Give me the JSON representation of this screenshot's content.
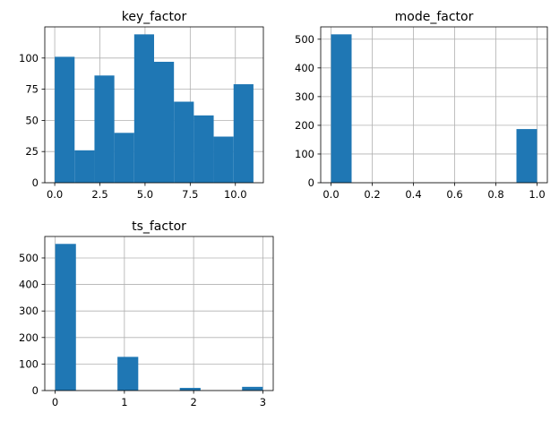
{
  "chart_data": [
    {
      "type": "bar",
      "title": "key_factor",
      "bins": [
        {
          "x0": 0.0,
          "x1": 1.1,
          "count": 101
        },
        {
          "x0": 1.1,
          "x1": 2.2,
          "count": 26
        },
        {
          "x0": 2.2,
          "x1": 3.3,
          "count": 86
        },
        {
          "x0": 3.3,
          "x1": 4.4,
          "count": 40
        },
        {
          "x0": 4.4,
          "x1": 5.5,
          "count": 119
        },
        {
          "x0": 5.5,
          "x1": 6.6,
          "count": 97
        },
        {
          "x0": 6.6,
          "x1": 7.7,
          "count": 65
        },
        {
          "x0": 7.7,
          "x1": 8.8,
          "count": 54
        },
        {
          "x0": 8.8,
          "x1": 9.9,
          "count": 37
        },
        {
          "x0": 9.9,
          "x1": 11.0,
          "count": 79
        }
      ],
      "xlim": [
        -0.55,
        11.55
      ],
      "ylim": [
        0,
        125
      ],
      "xticks": [
        0.0,
        2.5,
        5.0,
        7.5,
        10.0
      ],
      "xtick_labels": [
        "0.0",
        "2.5",
        "5.0",
        "7.5",
        "10.0"
      ],
      "yticks": [
        0,
        25,
        50,
        75,
        100
      ],
      "ytick_labels": [
        "0",
        "25",
        "50",
        "75",
        "100"
      ],
      "grid": true
    },
    {
      "type": "bar",
      "title": "mode_factor",
      "bins": [
        {
          "x0": 0.0,
          "x1": 0.1,
          "count": 517
        },
        {
          "x0": 0.1,
          "x1": 0.2,
          "count": 0
        },
        {
          "x0": 0.2,
          "x1": 0.3,
          "count": 0
        },
        {
          "x0": 0.3,
          "x1": 0.4,
          "count": 0
        },
        {
          "x0": 0.4,
          "x1": 0.5,
          "count": 0
        },
        {
          "x0": 0.5,
          "x1": 0.6,
          "count": 0
        },
        {
          "x0": 0.6,
          "x1": 0.7,
          "count": 0
        },
        {
          "x0": 0.7,
          "x1": 0.8,
          "count": 0
        },
        {
          "x0": 0.8,
          "x1": 0.9,
          "count": 0
        },
        {
          "x0": 0.9,
          "x1": 1.0,
          "count": 187
        }
      ],
      "xlim": [
        -0.05,
        1.05
      ],
      "ylim": [
        0,
        543
      ],
      "xticks": [
        0.0,
        0.2,
        0.4,
        0.6,
        0.8,
        1.0
      ],
      "xtick_labels": [
        "0.0",
        "0.2",
        "0.4",
        "0.6",
        "0.8",
        "1.0"
      ],
      "yticks": [
        0,
        100,
        200,
        300,
        400,
        500
      ],
      "ytick_labels": [
        "0",
        "100",
        "200",
        "300",
        "400",
        "500"
      ],
      "grid": true
    },
    {
      "type": "bar",
      "title": "ts_factor",
      "bins": [
        {
          "x0": 0.0,
          "x1": 0.3,
          "count": 553
        },
        {
          "x0": 0.3,
          "x1": 0.6,
          "count": 0
        },
        {
          "x0": 0.6,
          "x1": 0.9,
          "count": 0
        },
        {
          "x0": 0.9,
          "x1": 1.2,
          "count": 127
        },
        {
          "x0": 1.2,
          "x1": 1.5,
          "count": 0
        },
        {
          "x0": 1.5,
          "x1": 1.8,
          "count": 0
        },
        {
          "x0": 1.8,
          "x1": 2.1,
          "count": 10
        },
        {
          "x0": 2.1,
          "x1": 2.4,
          "count": 0
        },
        {
          "x0": 2.4,
          "x1": 2.7,
          "count": 0
        },
        {
          "x0": 2.7,
          "x1": 3.0,
          "count": 14
        }
      ],
      "xlim": [
        -0.15,
        3.15
      ],
      "ylim": [
        0,
        581
      ],
      "xticks": [
        0,
        1,
        2,
        3
      ],
      "xtick_labels": [
        "0",
        "1",
        "2",
        "3"
      ],
      "yticks": [
        0,
        100,
        200,
        300,
        400,
        500
      ],
      "ytick_labels": [
        "0",
        "100",
        "200",
        "300",
        "400",
        "500"
      ],
      "grid": true
    }
  ],
  "colors": {
    "bar": "#1f77b4",
    "grid": "#b0b0b0",
    "axis": "#000000",
    "background": "#ffffff"
  }
}
